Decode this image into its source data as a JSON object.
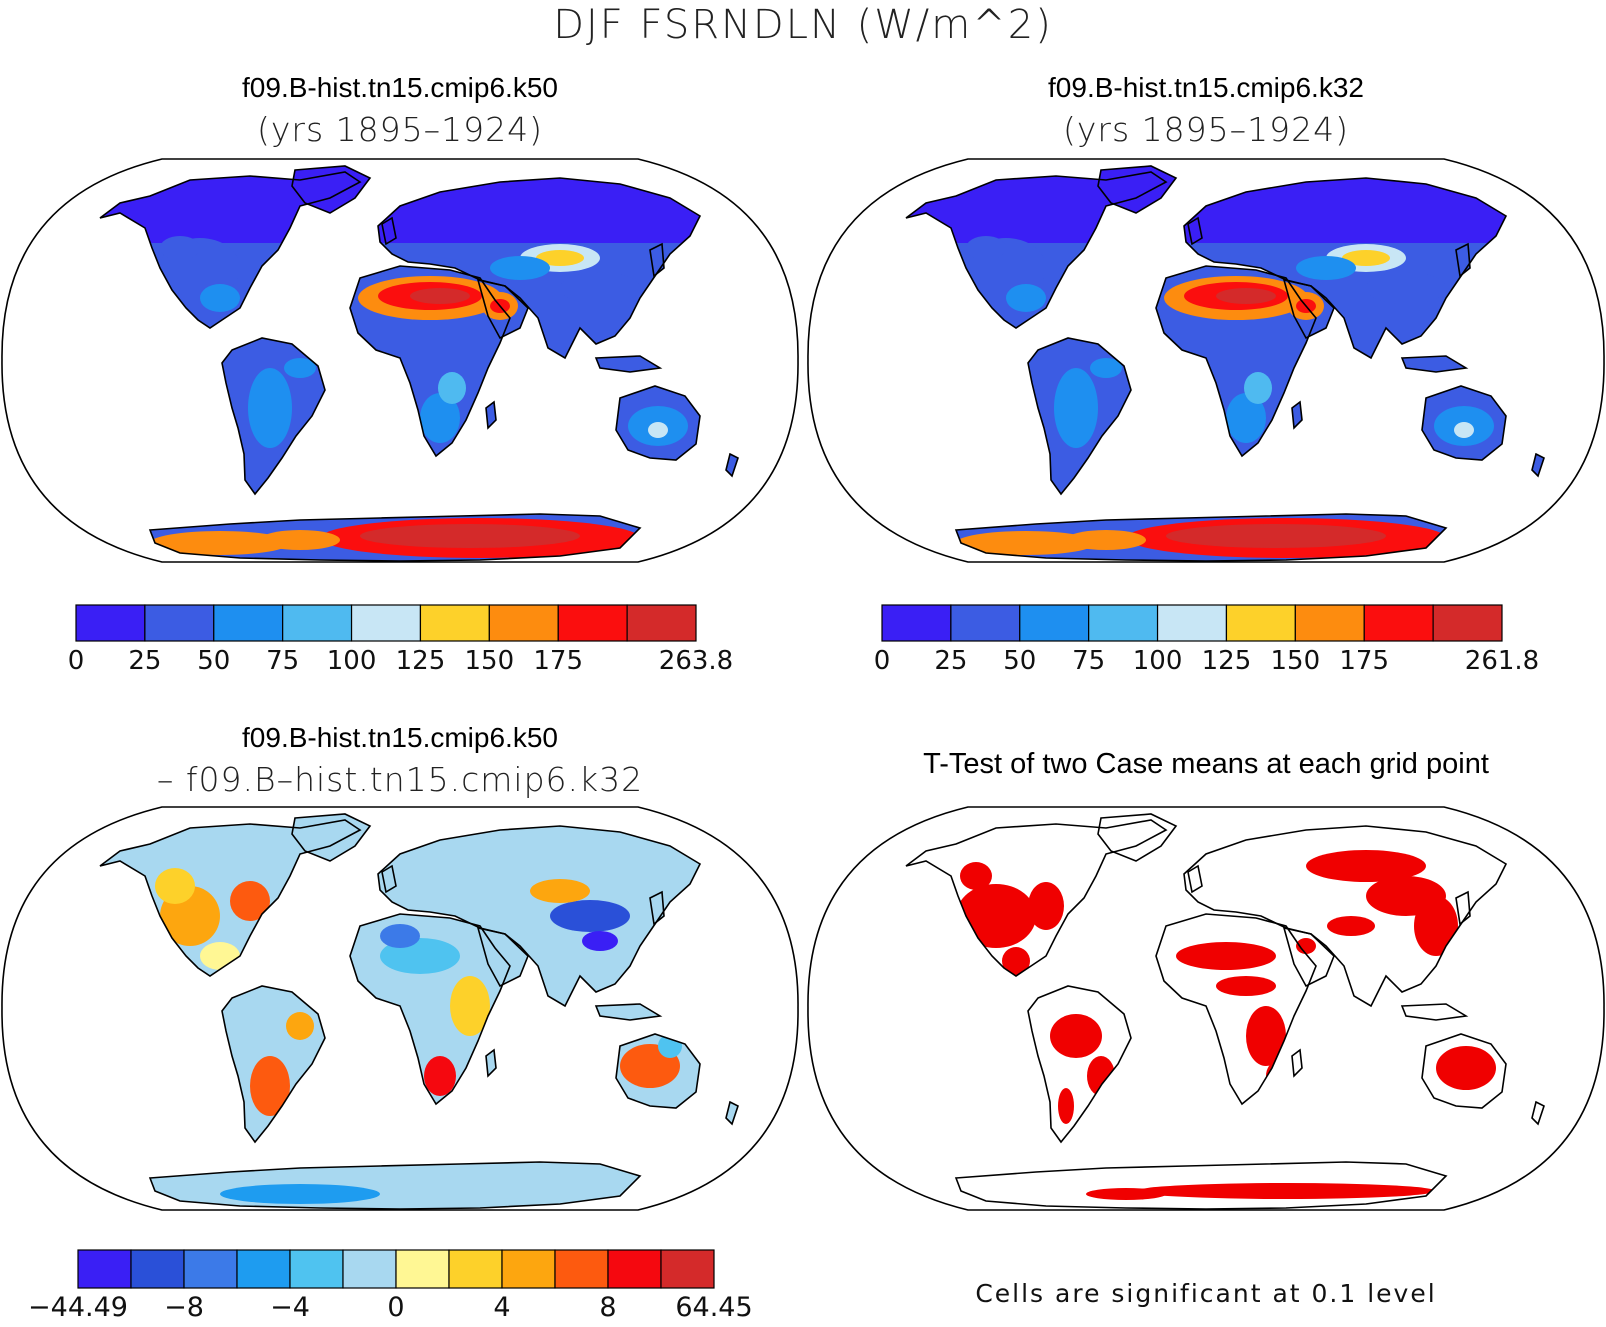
{
  "figure": {
    "title": "DJF FSRNDLN (W/m^2)",
    "colors": {
      "background": "#ffffff",
      "outline": "#000000"
    }
  },
  "panels": {
    "k50": {
      "title": "f09.B-hist.tn15.cmip6.k50",
      "subtitle": "(yrs 1895–1924)"
    },
    "k32": {
      "title": "f09.B-hist.tn15.cmip6.k32",
      "subtitle": "(yrs 1895–1924)"
    },
    "diff": {
      "title": "f09.B-hist.tn15.cmip6.k50",
      "subtitle": "– f09.B–hist.tn15.cmip6.k32"
    },
    "ttest": {
      "title": "T-Test of two Case means at each grid point",
      "note": "Cells are significant at 0.1 level"
    }
  },
  "chart_data": [
    {
      "type": "heatmap",
      "projection": "Robinson",
      "colorbar": {
        "colors": [
          "#3a1ff5",
          "#3c5ce3",
          "#1e8ff0",
          "#4fbaf0",
          "#c8e6f5",
          "#fdd12a",
          "#fd8c0f",
          "#fb0e0e",
          "#d42a2a"
        ],
        "tick_labels": [
          "0",
          "25",
          "50",
          "75",
          "100",
          "125",
          "150",
          "175",
          "263.8"
        ],
        "max": 263.8
      }
    },
    {
      "type": "heatmap",
      "projection": "Robinson",
      "colorbar": {
        "colors": [
          "#3a1ff5",
          "#3c5ce3",
          "#1e8ff0",
          "#4fbaf0",
          "#c8e6f5",
          "#fdd12a",
          "#fd8c0f",
          "#fb0e0e",
          "#d42a2a"
        ],
        "tick_labels": [
          "0",
          "25",
          "50",
          "75",
          "100",
          "125",
          "150",
          "175",
          "261.8"
        ],
        "max": 261.8
      }
    },
    {
      "type": "heatmap",
      "projection": "Robinson",
      "colorbar": {
        "colors": [
          "#3a1ff5",
          "#2a50d8",
          "#3c7ae8",
          "#1e9cf0",
          "#4fc3f0",
          "#a8d8f0",
          "#fff794",
          "#fdd12a",
          "#fda60f",
          "#fd5a0f",
          "#f5080f",
          "#d42a2a"
        ],
        "tick_labels": [
          "−44.49",
          "−8",
          "−4",
          "0",
          "4",
          "8",
          "64.45"
        ],
        "min": -44.49,
        "max": 64.45
      }
    },
    {
      "type": "heatmap",
      "projection": "Robinson",
      "significance_level": 0.1,
      "significant_color": "#f00000"
    }
  ]
}
